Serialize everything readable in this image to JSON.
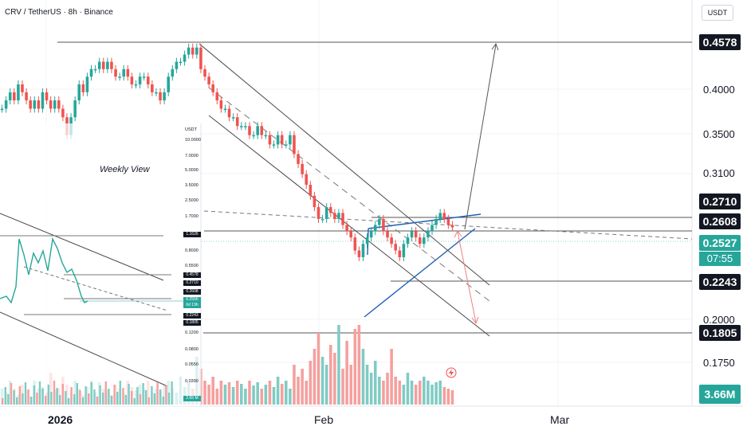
{
  "header": {
    "symbol": "CRV / TetherUS · 8h · Binance"
  },
  "axis_unit": "USDT",
  "weekly_label": "Weekly View",
  "inset": {
    "unit": "USDT",
    "ticks": [
      "10.0000",
      "7.0000",
      "5.0000",
      "3.5000",
      "2.5000",
      "1.7000",
      "1.1626",
      "0.8000",
      "0.5500",
      "0.3900",
      "0.2700",
      "0.1200",
      "0.0800",
      "0.0550",
      "0.0390",
      "2.65 M"
    ],
    "tags": [
      {
        "label": "1.1626",
        "kind": "dark"
      },
      {
        "label": "0.4578",
        "kind": "dark"
      },
      {
        "label": "0.2710",
        "kind": "dark"
      },
      {
        "label": "0.2608",
        "kind": "dark"
      },
      {
        "label": "0.2556",
        "kind": "green"
      },
      {
        "label": "6d 19h",
        "kind": "green"
      },
      {
        "label": "0.2243",
        "kind": "dark"
      },
      {
        "label": "0.1805",
        "kind": "dark"
      }
    ]
  },
  "chart_data": {
    "type": "candlestick",
    "symbol": "CRV / TetherUS",
    "timeframe": "8h",
    "exchange": "Binance",
    "y_unit": "USDT",
    "y_scale": "log",
    "y_ticks": [
      "0.4000",
      "0.3500",
      "0.3100",
      "0.2000",
      "0.1750"
    ],
    "x_ticks": [
      "2026",
      "Feb",
      "Mar"
    ],
    "price_levels": [
      {
        "label": "0.4578",
        "role": "target"
      },
      {
        "label": "0.2710",
        "role": "resistance"
      },
      {
        "label": "0.2608",
        "role": "resistance"
      },
      {
        "label": "0.2243",
        "role": "support"
      },
      {
        "label": "0.1805",
        "role": "support"
      }
    ],
    "current_price": "0.2527",
    "countdown": "07:55",
    "volume_label": "3.66M",
    "colors": {
      "up": "#26a69a",
      "down": "#ef5350",
      "triangle": "#1e5fb4",
      "channel": "#4a4a4a",
      "bear_arrow": "#f08080"
    },
    "closes": [
      0.37,
      0.38,
      0.39,
      0.38,
      0.4,
      0.39,
      0.38,
      0.37,
      0.38,
      0.37,
      0.39,
      0.38,
      0.37,
      0.38,
      0.37,
      0.36,
      0.34,
      0.36,
      0.38,
      0.4,
      0.39,
      0.41,
      0.42,
      0.42,
      0.43,
      0.42,
      0.43,
      0.42,
      0.41,
      0.41,
      0.42,
      0.41,
      0.4,
      0.4,
      0.41,
      0.41,
      0.4,
      0.39,
      0.39,
      0.38,
      0.39,
      0.41,
      0.42,
      0.43,
      0.43,
      0.44,
      0.45,
      0.44,
      0.45,
      0.42,
      0.41,
      0.4,
      0.39,
      0.38,
      0.37,
      0.37,
      0.36,
      0.36,
      0.35,
      0.35,
      0.35,
      0.34,
      0.34,
      0.35,
      0.34,
      0.34,
      0.33,
      0.33,
      0.34,
      0.33,
      0.33,
      0.34,
      0.32,
      0.31,
      0.3,
      0.29,
      0.28,
      0.27,
      0.26,
      0.26,
      0.27,
      0.265,
      0.26,
      0.265,
      0.255,
      0.25,
      0.245,
      0.235,
      0.23,
      0.24,
      0.245,
      0.25,
      0.255,
      0.26,
      0.25,
      0.245,
      0.24,
      0.235,
      0.23,
      0.24,
      0.245,
      0.25,
      0.245,
      0.24,
      0.245,
      0.25,
      0.255,
      0.26,
      0.265,
      0.26,
      0.255,
      0.253
    ],
    "volumes": [
      0.2,
      0.15,
      0.3,
      0.2,
      0.12,
      0.25,
      0.18,
      0.1,
      0.3,
      0.2,
      0.22,
      0.15,
      0.4,
      0.18,
      0.2,
      0.35,
      0.25,
      0.15,
      0.3,
      0.2,
      0.12,
      0.22,
      0.3,
      0.15,
      0.28,
      0.2,
      0.18,
      0.12,
      0.25,
      0.2,
      0.15,
      0.3,
      0.22,
      0.18,
      0.25,
      0.2,
      0.3,
      0.15,
      0.2,
      0.18,
      0.25,
      0.3,
      0.2,
      0.15,
      0.35,
      0.22,
      0.28,
      0.2,
      0.6,
      0.45,
      0.3,
      0.25,
      0.35,
      0.2,
      0.3,
      0.25,
      0.28,
      0.22,
      0.3,
      0.26,
      0.2,
      0.3,
      0.24,
      0.28,
      0.2,
      0.25,
      0.3,
      0.22,
      0.35,
      0.26,
      0.3,
      0.2,
      0.5,
      0.35,
      0.45,
      0.3,
      0.55,
      0.7,
      0.9,
      0.6,
      0.5,
      0.75,
      0.65,
      1.0,
      0.45,
      0.8,
      0.5,
      0.95,
      1.0,
      0.7,
      0.5,
      0.4,
      0.55,
      0.35,
      0.3,
      0.4,
      0.7,
      0.35,
      0.3,
      0.25,
      0.4,
      0.3,
      0.25,
      0.3,
      0.35,
      0.3,
      0.25,
      0.28,
      0.3,
      0.22,
      0.2,
      0.18
    ]
  }
}
